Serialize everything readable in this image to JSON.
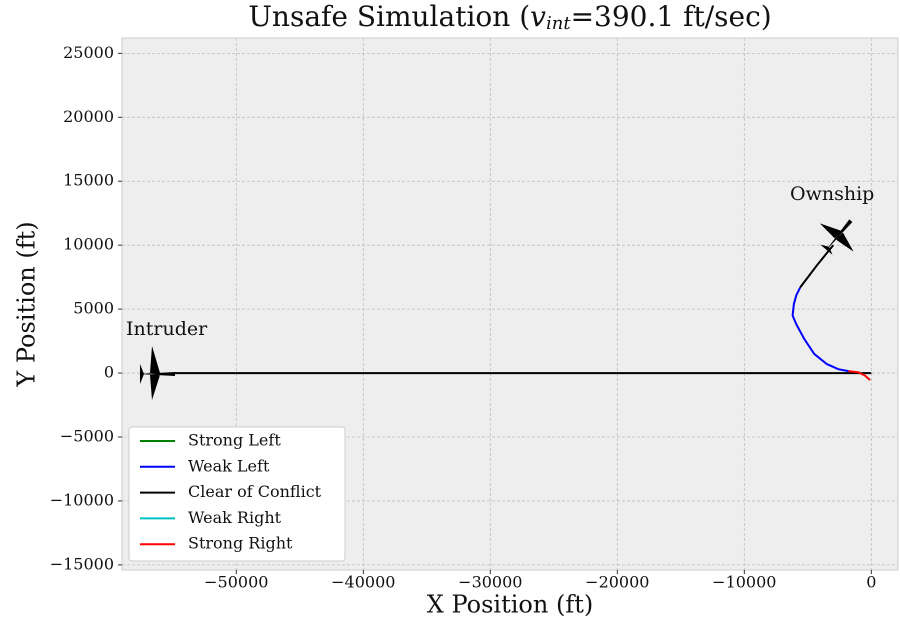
{
  "chart_data": {
    "type": "line",
    "title": [
      "Unsafe Simulation (",
      "v",
      "int",
      "=390.1 ft/sec)"
    ],
    "xlabel": "X Position (ft)",
    "ylabel": "Y Position (ft)",
    "xlim": [
      -59000,
      2100
    ],
    "ylim": [
      -15400,
      26200
    ],
    "xticks": [
      {
        "value": -50000,
        "label": "−50000"
      },
      {
        "value": -40000,
        "label": "−40000"
      },
      {
        "value": -30000,
        "label": "−30000"
      },
      {
        "value": -20000,
        "label": "−20000"
      },
      {
        "value": -10000,
        "label": "−10000"
      },
      0
    ],
    "yticks": [
      {
        "value": -15000,
        "label": "−15000"
      },
      {
        "value": -10000,
        "label": "−10000"
      },
      {
        "value": -5000,
        "label": "−5000"
      },
      0,
      5000,
      10000,
      15000,
      20000,
      25000
    ],
    "grid": true,
    "legend": "lower left",
    "series": [
      {
        "name": "Strong Left",
        "color": "#008000",
        "x": [],
        "y": []
      },
      {
        "name": "Weak Left",
        "color": "#0000ff",
        "x": [
          -1800,
          -2600,
          -3500,
          -4500,
          -5300,
          -5900,
          -6200,
          -6100,
          -5900,
          -5600
        ],
        "y": [
          150,
          300,
          700,
          1500,
          2700,
          3800,
          4500,
          5400,
          6100,
          6700
        ]
      },
      {
        "name": "Clear of Conflict",
        "color": "#000000",
        "x": [
          0,
          -55000,
          null,
          -5600,
          -4300,
          -3000
        ],
        "y": [
          0,
          0,
          null,
          6700,
          8400,
          10000
        ]
      },
      {
        "name": "Weak Right",
        "color": "#00bfbf",
        "x": [],
        "y": []
      },
      {
        "name": "Strong Right",
        "color": "#ff0000",
        "x": [
          -100,
          -500,
          -1000,
          -1800
        ],
        "y": [
          -550,
          -200,
          50,
          150
        ]
      }
    ],
    "annotations": [
      "Intruder",
      "Ownship"
    ]
  }
}
